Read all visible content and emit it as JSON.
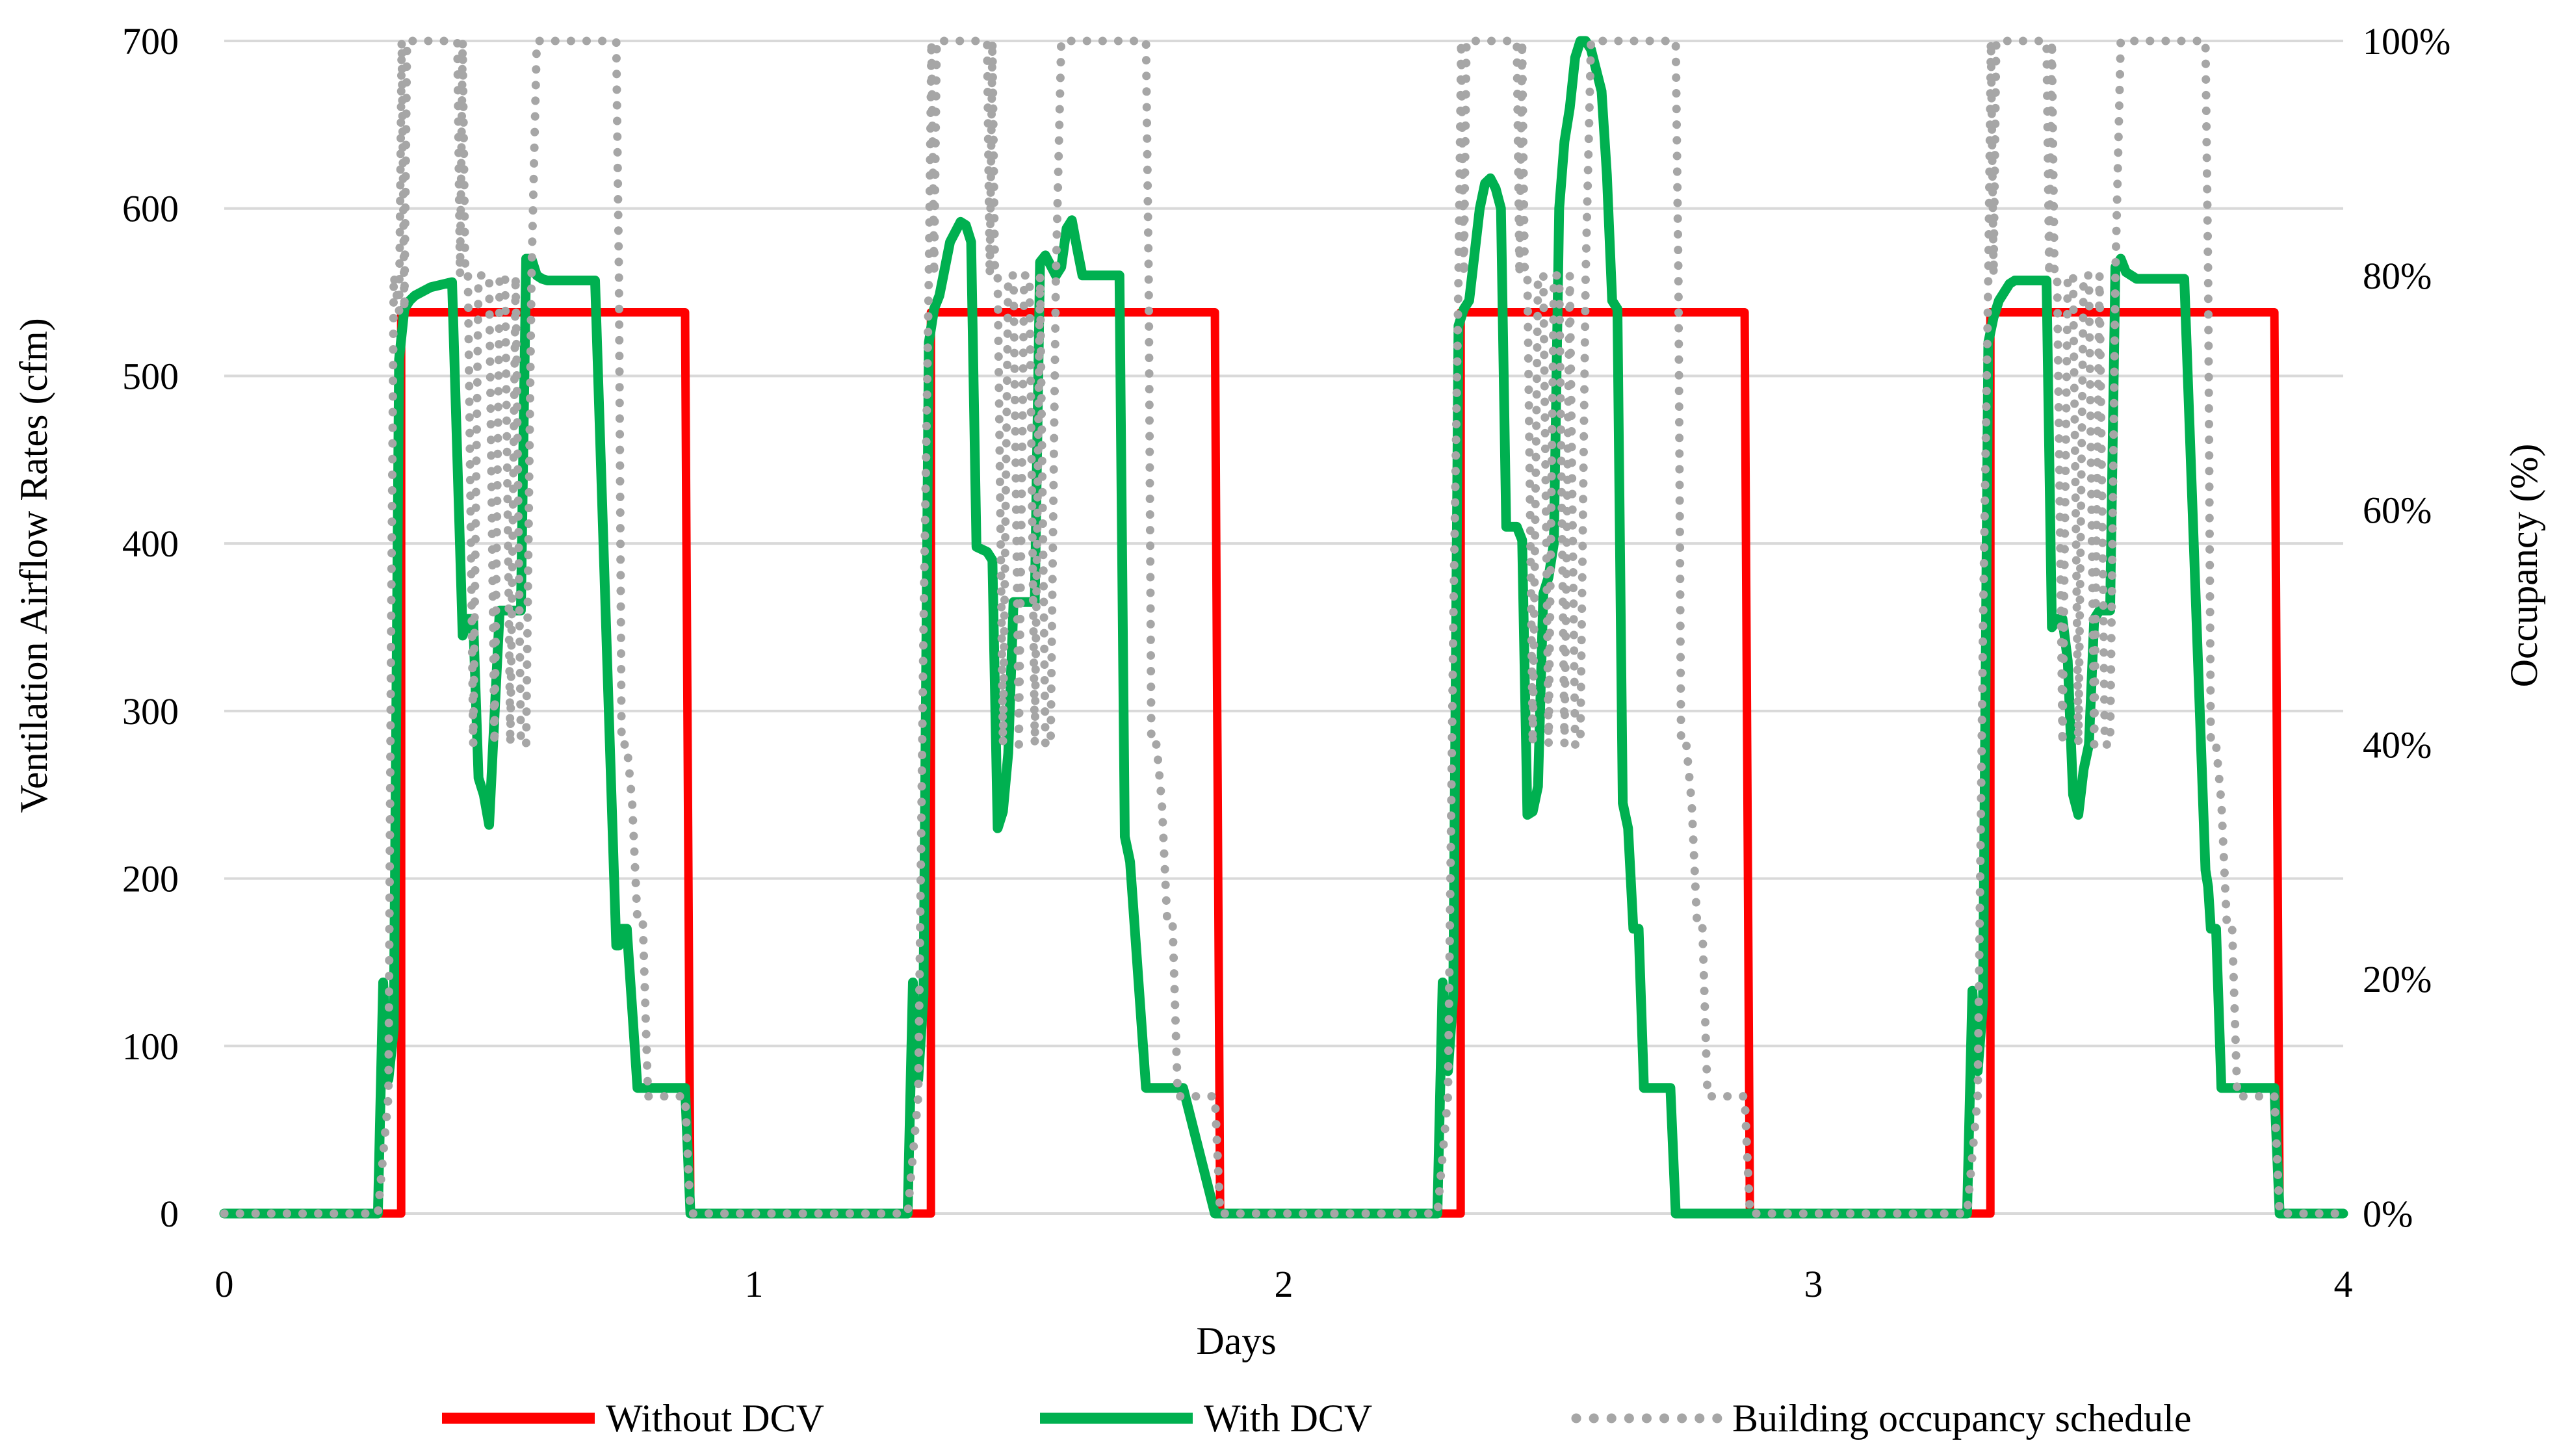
{
  "chart_data": {
    "type": "line",
    "title": "",
    "xlabel": "Days",
    "ylabel": "Ventilation Airflow Rates (cfm)",
    "y2label": "Occupancy (%)",
    "xlim": [
      0,
      4
    ],
    "ylim": [
      0,
      700
    ],
    "y2lim": [
      0,
      100
    ],
    "x_ticks": [
      0,
      1,
      2,
      3,
      4
    ],
    "x_tick_labels": [
      "0",
      "1",
      "2",
      "3",
      "4"
    ],
    "y_ticks": [
      0,
      100,
      200,
      300,
      400,
      500,
      600,
      700
    ],
    "y_tick_labels": [
      "0",
      "100",
      "200",
      "300",
      "400",
      "500",
      "600",
      "700"
    ],
    "y2_ticks": [
      0,
      20,
      40,
      60,
      80,
      100
    ],
    "y2_tick_labels": [
      "0%",
      "20%",
      "40%",
      "60%",
      "80%",
      "100%"
    ],
    "grid": true,
    "legend_position": "bottom",
    "colors": {
      "without": "#ff0000",
      "with": "#00b050",
      "schedule": "#a6a6a6",
      "grid": "#d9d9d9"
    },
    "series": [
      {
        "name": "Without DCV",
        "axis": "left",
        "x": [
          0.0,
          0.32,
          0.334,
          0.334,
          0.87,
          0.88,
          0.88,
          1.32,
          1.334,
          1.334,
          1.87,
          1.88,
          1.88,
          2.32,
          2.334,
          2.334,
          2.87,
          2.88,
          2.88,
          3.32,
          3.334,
          3.334,
          3.87,
          3.88,
          3.88,
          4.0
        ],
        "y": [
          0,
          0,
          0,
          538,
          538,
          0,
          0,
          0,
          0,
          538,
          538,
          0,
          0,
          0,
          0,
          538,
          538,
          0,
          0,
          0,
          0,
          538,
          538,
          0,
          0,
          0
        ]
      },
      {
        "name": "With DCV",
        "axis": "left",
        "x": [
          0.0,
          0.29,
          0.3,
          0.31,
          0.32,
          0.33,
          0.34,
          0.35,
          0.36,
          0.39,
          0.43,
          0.45,
          0.455,
          0.46,
          0.47,
          0.48,
          0.49,
          0.5,
          0.52,
          0.53,
          0.54,
          0.56,
          0.57,
          0.58,
          0.59,
          0.6,
          0.61,
          0.62,
          0.64,
          0.7,
          0.74,
          0.745,
          0.75,
          0.76,
          0.78,
          0.79,
          0.8,
          0.81,
          0.87,
          0.88,
          0.88,
          1.29,
          1.3,
          1.31,
          1.32,
          1.33,
          1.34,
          1.35,
          1.37,
          1.39,
          1.4,
          1.41,
          1.42,
          1.44,
          1.45,
          1.46,
          1.47,
          1.48,
          1.49,
          1.5,
          1.52,
          1.53,
          1.54,
          1.55,
          1.57,
          1.58,
          1.59,
          1.6,
          1.61,
          1.62,
          1.64,
          1.66,
          1.69,
          1.7,
          1.71,
          1.74,
          1.75,
          1.76,
          1.78,
          1.79,
          1.8,
          1.81,
          1.87,
          1.88,
          1.88,
          2.29,
          2.3,
          2.31,
          2.32,
          2.33,
          2.34,
          2.35,
          2.37,
          2.38,
          2.39,
          2.4,
          2.41,
          2.42,
          2.44,
          2.45,
          2.46,
          2.47,
          2.48,
          2.49,
          2.5,
          2.51,
          2.52,
          2.53,
          2.54,
          2.55,
          2.56,
          2.57,
          2.58,
          2.6,
          2.61,
          2.62,
          2.63,
          2.64,
          2.65,
          2.66,
          2.67,
          2.68,
          2.69,
          2.7,
          2.71,
          2.72,
          2.73,
          2.74,
          2.75,
          2.76,
          2.77,
          2.78,
          2.79,
          2.8,
          2.81,
          2.87,
          2.88,
          2.88,
          3.29,
          3.3,
          3.31,
          3.32,
          3.33,
          3.34,
          3.35,
          3.37,
          3.38,
          3.42,
          3.44,
          3.45,
          3.455,
          3.46,
          3.47,
          3.48,
          3.49,
          3.5,
          3.51,
          3.52,
          3.53,
          3.54,
          3.55,
          3.56,
          3.57,
          3.58,
          3.59,
          3.6,
          3.61,
          3.62,
          3.64,
          3.7,
          3.74,
          3.745,
          3.75,
          3.76,
          3.77,
          3.78,
          3.79,
          3.8,
          3.81,
          3.87,
          3.88,
          3.88,
          4.0
        ],
        "y": [
          0,
          0,
          138,
          80,
          110,
          510,
          540,
          545,
          548,
          553,
          556,
          345,
          350,
          355,
          355,
          260,
          250,
          232,
          360,
          360,
          360,
          360,
          570,
          570,
          560,
          558,
          557,
          557,
          557,
          557,
          160,
          160,
          170,
          170,
          75,
          75,
          75,
          75,
          75,
          0,
          0,
          0,
          138,
          80,
          130,
          520,
          540,
          548,
          580,
          592,
          590,
          580,
          398,
          395,
          390,
          230,
          240,
          275,
          365,
          365,
          365,
          365,
          568,
          572,
          560,
          565,
          588,
          593,
          576,
          560,
          560,
          560,
          560,
          225,
          210,
          75,
          75,
          75,
          75,
          75,
          75,
          75,
          0,
          0,
          0,
          0,
          138,
          85,
          130,
          530,
          540,
          545,
          600,
          615,
          618,
          612,
          600,
          410,
          410,
          402,
          238,
          240,
          255,
          370,
          380,
          400,
          600,
          640,
          660,
          690,
          700,
          700,
          695,
          670,
          620,
          545,
          540,
          245,
          230,
          170,
          170,
          75,
          75,
          75,
          75,
          75,
          75,
          0,
          0,
          0,
          0,
          0,
          0,
          0,
          0,
          0,
          0,
          0,
          0,
          133,
          85,
          125,
          520,
          535,
          545,
          555,
          557,
          557,
          557,
          350,
          352,
          355,
          355,
          330,
          250,
          238,
          265,
          280,
          355,
          360,
          360,
          360,
          565,
          570,
          562,
          560,
          558,
          558,
          558,
          558,
          205,
          195,
          170,
          170,
          75,
          75,
          75,
          75,
          75,
          75,
          0,
          0,
          0
        ]
      },
      {
        "name": "Building occupancy schedule",
        "axis": "right",
        "x": [
          0.0,
          0.29,
          0.3,
          0.31,
          0.315,
          0.32,
          0.33,
          0.335,
          0.34,
          0.345,
          0.44,
          0.445,
          0.45,
          0.455,
          0.46,
          0.47,
          0.48,
          0.49,
          0.5,
          0.51,
          0.52,
          0.53,
          0.54,
          0.55,
          0.56,
          0.57,
          0.58,
          0.59,
          0.6,
          0.74,
          0.745,
          0.75,
          0.76,
          0.77,
          0.78,
          0.79,
          0.8,
          0.81,
          0.87,
          0.88,
          1.29,
          1.3,
          1.31,
          1.32,
          1.33,
          1.335,
          1.34,
          1.345,
          1.44,
          1.445,
          1.45,
          1.455,
          1.46,
          1.47,
          1.48,
          1.49,
          1.5,
          1.51,
          1.52,
          1.53,
          1.54,
          1.55,
          1.56,
          1.57,
          1.58,
          1.59,
          1.6,
          1.74,
          1.745,
          1.75,
          1.76,
          1.77,
          1.78,
          1.79,
          1.8,
          1.81,
          1.87,
          1.88,
          2.29,
          2.3,
          2.31,
          2.32,
          2.33,
          2.335,
          2.34,
          2.345,
          2.44,
          2.445,
          2.45,
          2.455,
          2.46,
          2.47,
          2.48,
          2.49,
          2.5,
          2.51,
          2.52,
          2.53,
          2.54,
          2.55,
          2.56,
          2.57,
          2.58,
          2.59,
          2.6,
          2.74,
          2.745,
          2.75,
          2.76,
          2.77,
          2.78,
          2.79,
          2.8,
          2.81,
          2.87,
          2.88,
          3.29,
          3.3,
          3.31,
          3.32,
          3.33,
          3.335,
          3.34,
          3.345,
          3.44,
          3.445,
          3.45,
          3.455,
          3.46,
          3.47,
          3.48,
          3.49,
          3.5,
          3.51,
          3.52,
          3.53,
          3.54,
          3.55,
          3.56,
          3.57,
          3.58,
          3.59,
          3.6,
          3.74,
          3.745,
          3.75,
          3.76,
          3.77,
          3.78,
          3.79,
          3.8,
          3.81,
          3.87,
          3.88,
          4.0
        ],
        "y": [
          0,
          0,
          5,
          10,
          50,
          80,
          77,
          100,
          77,
          100,
          100,
          80,
          100,
          80,
          80,
          40,
          80,
          80,
          80,
          40,
          80,
          80,
          40,
          80,
          40,
          40,
          80,
          100,
          100,
          100,
          80,
          40,
          40,
          35,
          25,
          25,
          10,
          10,
          10,
          0,
          0,
          5,
          10,
          50,
          80,
          100,
          80,
          100,
          100,
          80,
          100,
          80,
          80,
          40,
          80,
          80,
          40,
          80,
          80,
          40,
          80,
          40,
          40,
          80,
          100,
          100,
          100,
          100,
          80,
          40,
          40,
          35,
          25,
          25,
          10,
          10,
          10,
          0,
          0,
          5,
          10,
          50,
          80,
          100,
          80,
          100,
          100,
          80,
          100,
          80,
          80,
          40,
          80,
          80,
          40,
          80,
          80,
          40,
          80,
          40,
          40,
          80,
          100,
          100,
          100,
          100,
          80,
          40,
          40,
          35,
          25,
          25,
          10,
          10,
          10,
          0,
          0,
          5,
          10,
          50,
          80,
          100,
          80,
          100,
          100,
          80,
          100,
          80,
          80,
          40,
          80,
          80,
          40,
          80,
          80,
          40,
          80,
          40,
          40,
          80,
          100,
          100,
          100,
          100,
          80,
          40,
          40,
          35,
          25,
          25,
          10,
          10,
          10,
          0,
          0
        ]
      }
    ]
  }
}
